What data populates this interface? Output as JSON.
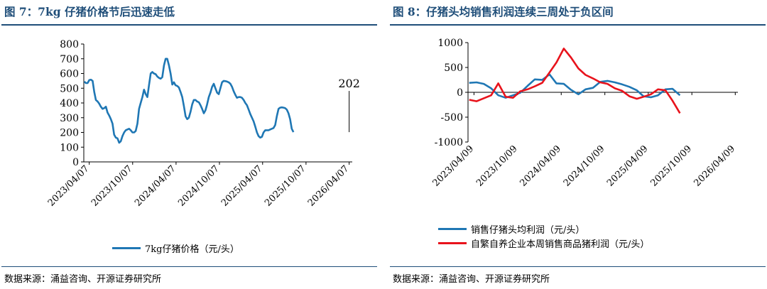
{
  "panels": [
    {
      "title": "图 7：7kg 仔猪价格节后迅速走低",
      "source": "数据来源：涌益咨询、开源证券研究所"
    },
    {
      "title": "图 8：仔猪头均销售利润连续三周处于负区间",
      "source": "数据来源：涌益咨询、开源证券研究所"
    }
  ],
  "chart_data": [
    {
      "type": "line",
      "ylim": [
        0,
        800
      ],
      "yticks": [
        0,
        100,
        200,
        300,
        400,
        500,
        600,
        700,
        800
      ],
      "xlim": [
        "2023-03-15",
        "2026-04-20"
      ],
      "xticks": [
        "2023-04-07",
        "2023-10-07",
        "2024-04-07",
        "2024-10-07",
        "2025-04-07",
        "2025-10-07",
        "2026-04-07"
      ],
      "xtick_labels": [
        "2023/04/07",
        "2023/10/07",
        "2024/04/07",
        "2024/10/07",
        "2025/04/07",
        "2025/10/07",
        "2026/04/07"
      ],
      "annotation": {
        "text": "202",
        "x": "2026-04-07",
        "y": 202
      },
      "grid": false,
      "legend_position": "bottom",
      "series": [
        {
          "name": "7kg仔猪价格（元/头）",
          "color": "#1f77b4",
          "points": [
            [
              "2023-03-17",
              545
            ],
            [
              "2023-03-24",
              535
            ],
            [
              "2023-03-31",
              535
            ],
            [
              "2023-04-07",
              555
            ],
            [
              "2023-04-14",
              558
            ],
            [
              "2023-04-21",
              550
            ],
            [
              "2023-04-28",
              475
            ],
            [
              "2023-05-05",
              420
            ],
            [
              "2023-05-12",
              410
            ],
            [
              "2023-05-19",
              395
            ],
            [
              "2023-05-26",
              375
            ],
            [
              "2023-06-02",
              360
            ],
            [
              "2023-06-09",
              365
            ],
            [
              "2023-06-16",
              375
            ],
            [
              "2023-06-23",
              335
            ],
            [
              "2023-06-30",
              315
            ],
            [
              "2023-07-07",
              290
            ],
            [
              "2023-07-14",
              260
            ],
            [
              "2023-07-21",
              185
            ],
            [
              "2023-07-28",
              165
            ],
            [
              "2023-08-04",
              160
            ],
            [
              "2023-08-11",
              130
            ],
            [
              "2023-08-18",
              140
            ],
            [
              "2023-08-25",
              175
            ],
            [
              "2023-09-01",
              200
            ],
            [
              "2023-09-08",
              215
            ],
            [
              "2023-09-15",
              220
            ],
            [
              "2023-09-22",
              225
            ],
            [
              "2023-09-29",
              215
            ],
            [
              "2023-10-06",
              200
            ],
            [
              "2023-10-13",
              200
            ],
            [
              "2023-10-20",
              210
            ],
            [
              "2023-10-27",
              260
            ],
            [
              "2023-11-03",
              360
            ],
            [
              "2023-11-10",
              400
            ],
            [
              "2023-11-17",
              440
            ],
            [
              "2023-11-24",
              490
            ],
            [
              "2023-12-01",
              460
            ],
            [
              "2023-12-08",
              440
            ],
            [
              "2023-12-15",
              520
            ],
            [
              "2023-12-22",
              600
            ],
            [
              "2023-12-29",
              610
            ],
            [
              "2024-01-05",
              600
            ],
            [
              "2024-01-12",
              595
            ],
            [
              "2024-01-19",
              580
            ],
            [
              "2024-01-26",
              570
            ],
            [
              "2024-02-02",
              565
            ],
            [
              "2024-02-09",
              575
            ],
            [
              "2024-02-16",
              655
            ],
            [
              "2024-02-23",
              700
            ],
            [
              "2024-03-01",
              700
            ],
            [
              "2024-03-08",
              655
            ],
            [
              "2024-03-15",
              600
            ],
            [
              "2024-03-22",
              525
            ],
            [
              "2024-03-29",
              540
            ],
            [
              "2024-04-05",
              520
            ],
            [
              "2024-04-12",
              515
            ],
            [
              "2024-04-19",
              505
            ],
            [
              "2024-04-26",
              475
            ],
            [
              "2024-05-03",
              440
            ],
            [
              "2024-05-10",
              380
            ],
            [
              "2024-05-17",
              310
            ],
            [
              "2024-05-24",
              290
            ],
            [
              "2024-05-31",
              300
            ],
            [
              "2024-06-07",
              340
            ],
            [
              "2024-06-14",
              390
            ],
            [
              "2024-06-21",
              420
            ],
            [
              "2024-06-28",
              420
            ],
            [
              "2024-07-05",
              410
            ],
            [
              "2024-07-12",
              405
            ],
            [
              "2024-07-19",
              385
            ],
            [
              "2024-07-26",
              360
            ],
            [
              "2024-08-02",
              330
            ],
            [
              "2024-08-09",
              350
            ],
            [
              "2024-08-16",
              390
            ],
            [
              "2024-08-23",
              440
            ],
            [
              "2024-08-30",
              470
            ],
            [
              "2024-09-06",
              510
            ],
            [
              "2024-09-13",
              530
            ],
            [
              "2024-09-20",
              500
            ],
            [
              "2024-09-27",
              470
            ],
            [
              "2024-10-04",
              460
            ],
            [
              "2024-10-11",
              500
            ],
            [
              "2024-10-18",
              540
            ],
            [
              "2024-10-25",
              550
            ],
            [
              "2024-11-01",
              548
            ],
            [
              "2024-11-08",
              545
            ],
            [
              "2024-11-15",
              540
            ],
            [
              "2024-11-22",
              530
            ],
            [
              "2024-11-29",
              510
            ],
            [
              "2024-12-06",
              480
            ],
            [
              "2024-12-13",
              455
            ],
            [
              "2024-12-20",
              435
            ],
            [
              "2024-12-27",
              440
            ],
            [
              "2025-01-03",
              440
            ],
            [
              "2025-01-10",
              435
            ],
            [
              "2025-01-17",
              420
            ],
            [
              "2025-01-24",
              400
            ],
            [
              "2025-01-31",
              385
            ],
            [
              "2025-02-07",
              355
            ],
            [
              "2025-02-14",
              325
            ],
            [
              "2025-02-21",
              300
            ],
            [
              "2025-02-28",
              275
            ],
            [
              "2025-03-07",
              240
            ],
            [
              "2025-03-14",
              200
            ],
            [
              "2025-03-21",
              175
            ],
            [
              "2025-03-28",
              165
            ],
            [
              "2025-04-04",
              170
            ],
            [
              "2025-04-11",
              200
            ],
            [
              "2025-04-18",
              215
            ],
            [
              "2025-04-25",
              215
            ],
            [
              "2025-05-02",
              215
            ],
            [
              "2025-05-09",
              220
            ],
            [
              "2025-05-16",
              225
            ],
            [
              "2025-05-23",
              230
            ],
            [
              "2025-05-30",
              250
            ],
            [
              "2025-06-06",
              310
            ],
            [
              "2025-06-13",
              360
            ],
            [
              "2025-06-20",
              368
            ],
            [
              "2025-06-27",
              370
            ],
            [
              "2025-07-04",
              368
            ],
            [
              "2025-07-11",
              365
            ],
            [
              "2025-07-18",
              355
            ],
            [
              "2025-07-25",
              330
            ],
            [
              "2025-08-01",
              290
            ],
            [
              "2025-08-08",
              225
            ],
            [
              "2025-08-15",
              202
            ]
          ]
        }
      ]
    },
    {
      "type": "line",
      "ylim": [
        -1000,
        1000
      ],
      "yticks": [
        -1000,
        -500,
        0,
        500,
        1000
      ],
      "xlim": [
        "2023-03-15",
        "2026-04-20"
      ],
      "xticks": [
        "2023-04-09",
        "2023-10-09",
        "2024-04-09",
        "2024-10-09",
        "2025-04-09",
        "2025-10-09",
        "2026-04-09"
      ],
      "xtick_labels": [
        "2023/04/09",
        "2023/10/09",
        "2024/04/09",
        "2024/10/09",
        "2025/04/09",
        "2025/10/09",
        "2026/04/09"
      ],
      "grid": false,
      "legend_position": "bottom",
      "series": [
        {
          "name": "销售仔猪头均利润（元/头）",
          "color": "#1f77b4",
          "points": [
            [
              "2023-03-20",
              190
            ],
            [
              "2023-04-20",
              200
            ],
            [
              "2023-05-20",
              170
            ],
            [
              "2023-06-20",
              80
            ],
            [
              "2023-07-20",
              -60
            ],
            [
              "2023-08-20",
              -110
            ],
            [
              "2023-09-20",
              -60
            ],
            [
              "2023-10-20",
              -10
            ],
            [
              "2023-11-20",
              130
            ],
            [
              "2023-12-20",
              260
            ],
            [
              "2024-01-20",
              250
            ],
            [
              "2024-02-20",
              360
            ],
            [
              "2024-03-20",
              180
            ],
            [
              "2024-04-20",
              170
            ],
            [
              "2024-05-20",
              50
            ],
            [
              "2024-06-20",
              -40
            ],
            [
              "2024-07-20",
              60
            ],
            [
              "2024-08-20",
              90
            ],
            [
              "2024-09-20",
              210
            ],
            [
              "2024-10-20",
              230
            ],
            [
              "2024-11-20",
              200
            ],
            [
              "2024-12-20",
              160
            ],
            [
              "2025-01-20",
              110
            ],
            [
              "2025-02-20",
              40
            ],
            [
              "2025-03-20",
              -80
            ],
            [
              "2025-04-20",
              -100
            ],
            [
              "2025-05-20",
              -60
            ],
            [
              "2025-06-20",
              60
            ],
            [
              "2025-07-20",
              70
            ],
            [
              "2025-08-20",
              -60
            ]
          ]
        },
        {
          "name": "自繁自养企业本周销售商品猪利润（元/头）",
          "color": "#e8131c",
          "points": [
            [
              "2023-03-20",
              -150
            ],
            [
              "2023-04-20",
              -180
            ],
            [
              "2023-05-20",
              -120
            ],
            [
              "2023-06-20",
              -60
            ],
            [
              "2023-07-20",
              180
            ],
            [
              "2023-08-20",
              -90
            ],
            [
              "2023-09-20",
              -110
            ],
            [
              "2023-10-20",
              20
            ],
            [
              "2023-11-20",
              60
            ],
            [
              "2023-12-20",
              120
            ],
            [
              "2024-01-20",
              190
            ],
            [
              "2024-02-20",
              400
            ],
            [
              "2024-03-20",
              600
            ],
            [
              "2024-04-20",
              880
            ],
            [
              "2024-05-20",
              700
            ],
            [
              "2024-06-20",
              480
            ],
            [
              "2024-07-20",
              350
            ],
            [
              "2024-08-20",
              280
            ],
            [
              "2024-09-20",
              200
            ],
            [
              "2024-10-20",
              170
            ],
            [
              "2024-11-20",
              80
            ],
            [
              "2024-12-20",
              30
            ],
            [
              "2025-01-20",
              -80
            ],
            [
              "2025-02-20",
              -130
            ],
            [
              "2025-03-20",
              -90
            ],
            [
              "2025-04-20",
              -40
            ],
            [
              "2025-05-20",
              60
            ],
            [
              "2025-06-20",
              40
            ],
            [
              "2025-07-20",
              -170
            ],
            [
              "2025-08-20",
              -420
            ]
          ]
        }
      ]
    }
  ]
}
